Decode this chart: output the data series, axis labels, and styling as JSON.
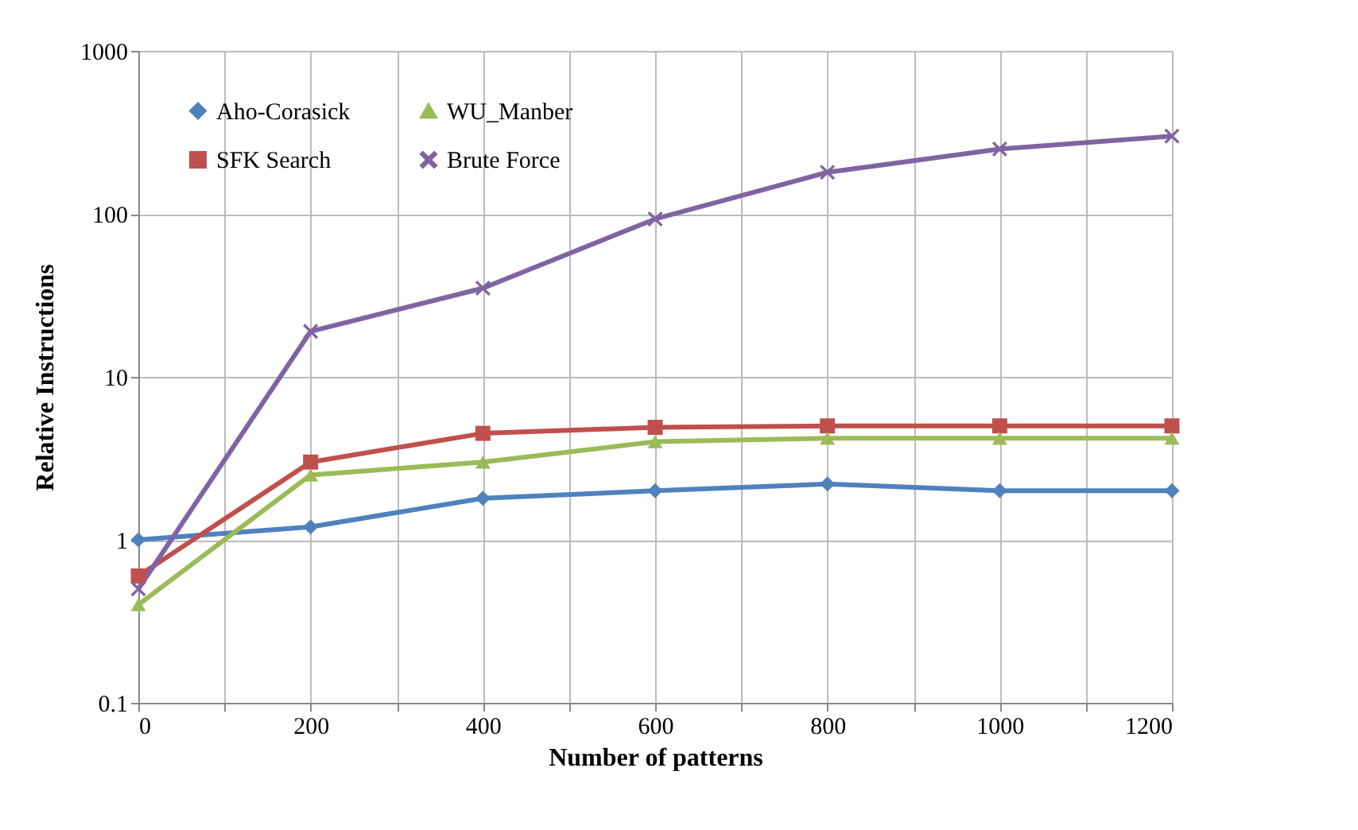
{
  "chart_data": {
    "type": "line",
    "xlabel": "Number of patterns",
    "ylabel": "Relative Instructions",
    "x": [
      0,
      200,
      400,
      600,
      800,
      1000,
      1200
    ],
    "series": [
      {
        "name": "Aho-Corasick",
        "color": "#4f81bd",
        "marker": "diamond",
        "values": [
          1,
          1.2,
          1.8,
          2.0,
          2.2,
          2.0,
          2.0
        ]
      },
      {
        "name": "SFK Search",
        "color": "#c0504d",
        "marker": "square",
        "values": [
          0.6,
          3.0,
          4.5,
          4.9,
          5.0,
          5.0,
          5.0
        ]
      },
      {
        "name": "WU_Manber",
        "color": "#9bbb59",
        "marker": "triangle",
        "values": [
          0.4,
          2.5,
          3.0,
          4.0,
          4.2,
          4.2,
          4.2
        ]
      },
      {
        "name": "Brute Force",
        "color": "#8064a2",
        "marker": "cross",
        "values": [
          0.5,
          19,
          35,
          93,
          180,
          250,
          300
        ]
      }
    ],
    "xlim": [
      0,
      1200
    ],
    "xticks": [
      0,
      {
        "value": 100,
        "label": null
      },
      200,
      {
        "value": 300,
        "label": null
      },
      400,
      {
        "value": 500,
        "label": null
      },
      600,
      {
        "value": 700,
        "label": null
      },
      800,
      {
        "value": 900,
        "label": null
      },
      1000,
      {
        "value": 1100,
        "label": null
      },
      1200
    ],
    "ylim": [
      0.1,
      1000
    ],
    "yticks": [
      0.1,
      1,
      10,
      100,
      1000
    ],
    "log": true,
    "grid": true,
    "legend": "top left"
  }
}
